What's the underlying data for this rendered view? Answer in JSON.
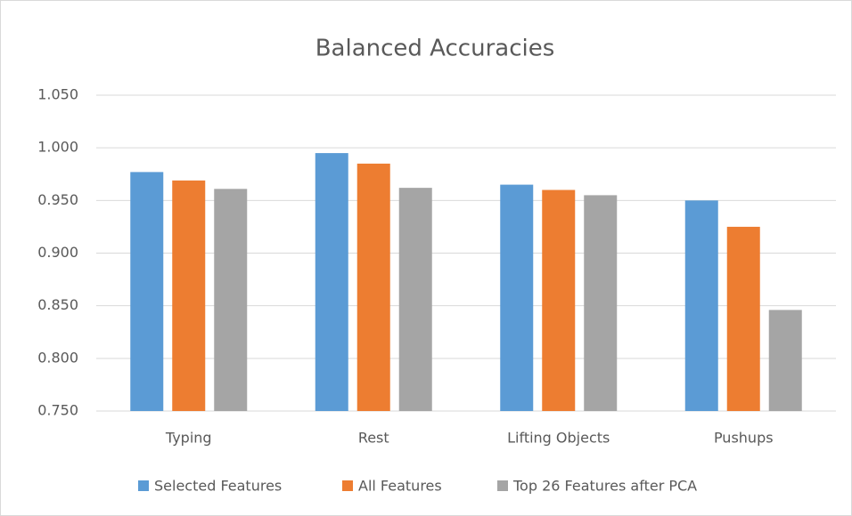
{
  "chart_data": {
    "type": "bar",
    "title": "Balanced Accuracies",
    "categories": [
      "Typing",
      "Rest",
      "Lifting Objects",
      "Pushups"
    ],
    "series": [
      {
        "name": "Selected Features",
        "color": "#5b9bd5",
        "values": [
          0.977,
          0.995,
          0.965,
          0.95
        ]
      },
      {
        "name": "All Features",
        "color": "#ed7d31",
        "values": [
          0.969,
          0.985,
          0.96,
          0.925
        ]
      },
      {
        "name": "Top 26 Features after PCA",
        "color": "#a5a5a5",
        "values": [
          0.961,
          0.962,
          0.955,
          0.846
        ]
      }
    ],
    "ylim": [
      0.75,
      1.05
    ],
    "yticks": [
      {
        "value": 0.75,
        "label": "0.750"
      },
      {
        "value": 0.8,
        "label": "0.800"
      },
      {
        "value": 0.85,
        "label": "0.850"
      },
      {
        "value": 0.9,
        "label": "0.900"
      },
      {
        "value": 0.95,
        "label": "0.950"
      },
      {
        "value": 1.0,
        "label": "1.000"
      },
      {
        "value": 1.05,
        "label": "1.050"
      }
    ],
    "grid": true,
    "legend": "bottom"
  }
}
